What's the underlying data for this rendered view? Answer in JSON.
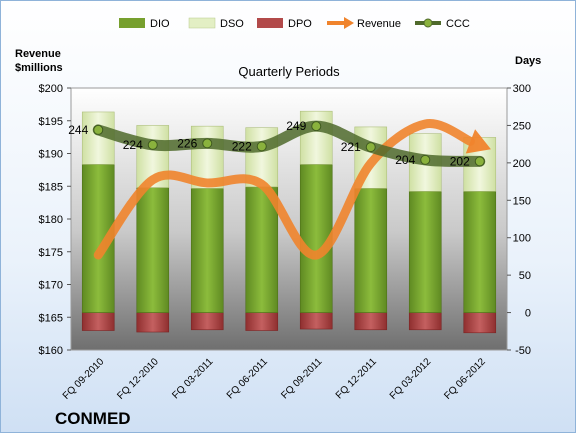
{
  "company": "CONMED",
  "chart_data": {
    "type": "bar",
    "title": "Quarterly Periods",
    "left_axis_label_line1": "Revenue",
    "left_axis_label_line2": "$millions",
    "right_axis_label": "Days",
    "categories": [
      "FQ 09-2010",
      "FQ 12-2010",
      "FQ 03-2011",
      "FQ 06-2011",
      "FQ 09-2011",
      "FQ 12-2011",
      "FQ 03-2012",
      "FQ 06-2012"
    ],
    "left_ylim": [
      160,
      200
    ],
    "left_ticks": [
      "$160",
      "$165",
      "$170",
      "$175",
      "$180",
      "$185",
      "$190",
      "$195",
      "$200"
    ],
    "right_ylim": [
      -50,
      300
    ],
    "right_ticks": [
      "-50",
      "0",
      "50",
      "100",
      "150",
      "200",
      "250",
      "300"
    ],
    "series": [
      {
        "name": "DIO",
        "type": "stacked-bar",
        "axis": "right",
        "values": [
          198,
          167,
          166,
          168,
          198,
          166,
          162,
          162
        ],
        "color": "#77a02e"
      },
      {
        "name": "DSO",
        "type": "stacked-bar",
        "axis": "right",
        "values": [
          70,
          83,
          83,
          79,
          71,
          82,
          77,
          72
        ],
        "color": "#e3efc4"
      },
      {
        "name": "DPO",
        "type": "stacked-bar",
        "axis": "right",
        "values": [
          -24,
          -26,
          -23,
          -24,
          -22,
          -23,
          -23,
          -27
        ],
        "color": "#b24a4a"
      },
      {
        "name": "Revenue",
        "type": "line",
        "axis": "left",
        "values": [
          174.5,
          186.0,
          185.5,
          185.3,
          174.5,
          188.5,
          194.5,
          191.3
        ],
        "color": "#f0842c"
      },
      {
        "name": "CCC",
        "type": "line",
        "axis": "right",
        "values": [
          244,
          224,
          226,
          222,
          249,
          221,
          204,
          202
        ],
        "data_labels": [
          "244",
          "224",
          "226",
          "222",
          "249",
          "221",
          "204",
          "202"
        ],
        "color": "#4f6a2b"
      }
    ],
    "legend_position": "top",
    "grid": false
  }
}
